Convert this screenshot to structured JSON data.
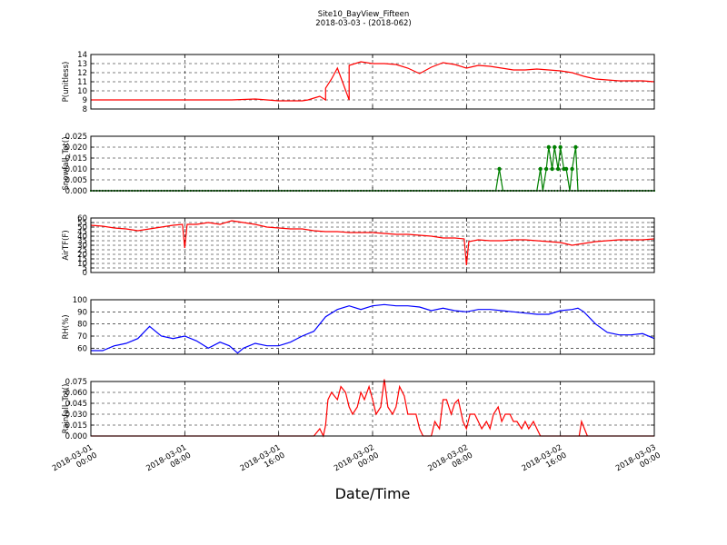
{
  "figure": {
    "title": "Site10_BayView_Fifteen",
    "subtitle": "2018-03-03 - (2018-062)",
    "xlabel": "Date/Time"
  },
  "chart_data": [
    {
      "type": "line",
      "ylabel": "P(unitless)",
      "ylim": [
        8,
        14
      ],
      "yticks": [
        "8",
        "9",
        "10",
        "11",
        "12",
        "13",
        "14"
      ],
      "xlim": [
        0,
        48
      ],
      "xticks": [
        {
          "line1": "2018-03-01",
          "line2": "00:00"
        },
        {
          "line1": "2018-03-01",
          "line2": "08:00"
        },
        {
          "line1": "2018-03-01",
          "line2": "16:00"
        },
        {
          "line1": "2018-03-02",
          "line2": "00:00"
        },
        {
          "line1": "2018-03-02",
          "line2": "08:00"
        },
        {
          "line1": "2018-03-02",
          "line2": "16:00"
        },
        {
          "line1": "2018-03-03",
          "line2": "00:00"
        }
      ],
      "grid": true,
      "color": "#ff0000",
      "markers": false,
      "x": [
        0,
        2,
        4,
        6,
        8,
        10,
        12,
        14,
        15,
        16,
        18,
        20,
        22,
        18.5,
        19,
        19.5,
        20,
        20.5,
        21,
        22,
        23,
        24,
        25,
        26,
        27,
        28,
        29,
        30,
        31,
        32,
        33,
        34,
        35,
        36,
        37,
        38,
        39,
        40,
        41,
        42,
        43,
        44,
        45,
        46,
        47,
        48
      ],
      "y": [
        9.0,
        9.0,
        9.0,
        9.0,
        9.0,
        9.0,
        9.0,
        9.1,
        9.0,
        8.9,
        8.9,
        9.0,
        9.0,
        9.0,
        9.2,
        9.4,
        10.3,
        11.3,
        12.5,
        12.8,
        13.2,
        13.0,
        13.0,
        12.9,
        12.5,
        11.9,
        12.6,
        13.1,
        12.9,
        12.5,
        12.8,
        12.7,
        12.5,
        12.3,
        12.3,
        12.4,
        12.3,
        12.2,
        12.0,
        11.6,
        11.3,
        11.2,
        11.1,
        11.1,
        11.1,
        11.0
      ]
    },
    {
      "type": "line",
      "ylabel": "Snowfall_Tot()",
      "ylim": [
        0,
        0.025
      ],
      "yticks": [
        "0.000",
        "0.005",
        "0.010",
        "0.015",
        "0.020",
        "0.025"
      ],
      "xlim": [
        0,
        48
      ],
      "grid": true,
      "color": "#008000",
      "markers": true,
      "x": [
        0,
        34.5,
        34.8,
        35.1,
        38.0,
        38.3,
        38.5,
        38.8,
        39.0,
        39.3,
        39.5,
        39.8,
        40.0,
        40.3,
        40.5,
        40.8,
        41.0,
        41.3,
        41.5,
        41.8,
        42.0,
        48.0
      ],
      "y": [
        0.0,
        0.0,
        0.01,
        0.0,
        0.0,
        0.01,
        0.0,
        0.01,
        0.02,
        0.01,
        0.02,
        0.01,
        0.02,
        0.01,
        0.01,
        0.0,
        0.01,
        0.02,
        0.0,
        0.0,
        0.0,
        0.0
      ]
    },
    {
      "type": "line",
      "ylabel": "AirTF(F)",
      "ylim": [
        0,
        60
      ],
      "yticks": [
        "0",
        "5",
        "10",
        "15",
        "20",
        "25",
        "30",
        "35",
        "40",
        "45",
        "50",
        "55",
        "60"
      ],
      "xlim": [
        0,
        48
      ],
      "grid": true,
      "color": "#ff0000",
      "markers": false,
      "x": [
        0,
        1,
        2,
        3,
        4,
        5,
        6,
        7,
        7.8,
        8.0,
        8.2,
        9,
        10,
        11,
        12,
        13,
        14,
        15,
        16,
        17,
        18,
        19,
        20,
        21,
        22,
        23,
        24,
        25,
        26,
        27,
        28,
        29,
        30,
        31,
        31.8,
        32.0,
        32.2,
        33,
        34,
        35,
        36,
        37,
        38,
        39,
        40,
        41,
        42,
        43,
        44,
        45,
        46,
        47,
        48
      ],
      "y": [
        52,
        51,
        49,
        48,
        46,
        48,
        50,
        52,
        53,
        27,
        53,
        53,
        55,
        53,
        57,
        55,
        53,
        50,
        49,
        48,
        48,
        46,
        45,
        45,
        44,
        44,
        44,
        43,
        42,
        42,
        41,
        40,
        38,
        38,
        37,
        8,
        34,
        36,
        35,
        35,
        36,
        36,
        35,
        34,
        33,
        30,
        32,
        34,
        35,
        36,
        36,
        36,
        37
      ]
    },
    {
      "type": "line",
      "ylabel": "RH(%)",
      "ylim": [
        55,
        100
      ],
      "yticks": [
        "60",
        "70",
        "80",
        "90",
        "100"
      ],
      "xlim": [
        0,
        48
      ],
      "grid": true,
      "color": "#0000ff",
      "markers": false,
      "x": [
        0,
        1,
        2,
        3,
        4,
        5,
        6,
        7,
        8,
        9,
        10,
        11,
        11.8,
        12.5,
        13,
        14,
        15,
        16,
        17,
        18,
        19,
        20,
        21,
        22,
        23,
        24,
        25,
        26,
        27,
        28,
        29,
        30,
        31,
        32,
        33,
        34,
        35,
        36,
        37,
        38,
        39,
        40,
        41,
        41.5,
        42,
        43,
        44,
        45,
        46,
        47,
        48
      ],
      "y": [
        58,
        58,
        62,
        64,
        68,
        78,
        70,
        68,
        70,
        66,
        60,
        65,
        62,
        56,
        60,
        64,
        62,
        62,
        65,
        70,
        74,
        86,
        92,
        95,
        92,
        95,
        96,
        95,
        95,
        94,
        91,
        93,
        91,
        90,
        92,
        92,
        91,
        90,
        89,
        88,
        88,
        91,
        92,
        93,
        90,
        80,
        73,
        71,
        71,
        72,
        68
      ]
    },
    {
      "type": "line",
      "ylabel": "Rainfall_Tot()",
      "ylim": [
        0,
        0.075
      ],
      "yticks": [
        "0.000",
        "0.015",
        "0.030",
        "0.045",
        "0.060",
        "0.075"
      ],
      "xlim": [
        0,
        48
      ],
      "grid": true,
      "color": "#ff0000",
      "markers": false,
      "x": [
        0,
        19,
        19.5,
        19.8,
        20.0,
        20.2,
        20.5,
        21.0,
        21.3,
        21.7,
        22.0,
        22.3,
        22.7,
        23.0,
        23.3,
        23.7,
        24.0,
        24.3,
        24.7,
        25.0,
        25.3,
        25.7,
        26.0,
        26.3,
        26.7,
        27.0,
        27.3,
        27.7,
        28.0,
        28.3,
        28.7,
        29.0,
        29.3,
        29.7,
        30.0,
        30.3,
        30.7,
        31.0,
        31.3,
        31.7,
        32.0,
        32.3,
        32.7,
        33.0,
        33.3,
        33.7,
        34.0,
        34.3,
        34.7,
        35.0,
        35.3,
        35.7,
        36.0,
        36.3,
        36.7,
        37.0,
        37.3,
        37.7,
        38.0,
        38.3,
        38.7,
        39.0,
        40.0,
        41.0,
        41.7,
        42.0,
        42.3,
        42.7,
        43.0,
        48.0
      ],
      "y": [
        0.0,
        0.0,
        0.01,
        0.0,
        0.015,
        0.05,
        0.06,
        0.05,
        0.068,
        0.06,
        0.04,
        0.03,
        0.04,
        0.06,
        0.05,
        0.068,
        0.05,
        0.03,
        0.04,
        0.078,
        0.04,
        0.03,
        0.04,
        0.068,
        0.055,
        0.03,
        0.03,
        0.03,
        0.01,
        0.0,
        0.0,
        0.0,
        0.02,
        0.01,
        0.05,
        0.05,
        0.03,
        0.045,
        0.05,
        0.02,
        0.01,
        0.03,
        0.03,
        0.02,
        0.01,
        0.02,
        0.01,
        0.03,
        0.04,
        0.02,
        0.03,
        0.03,
        0.02,
        0.02,
        0.01,
        0.02,
        0.01,
        0.02,
        0.01,
        0.0,
        0.0,
        0.0,
        0.0,
        0.0,
        0.0,
        0.0,
        0.0,
        0.0,
        0.0,
        0.0
      ],
      "note_extra_peak": [
        41.8,
        0.02
      ]
    }
  ]
}
